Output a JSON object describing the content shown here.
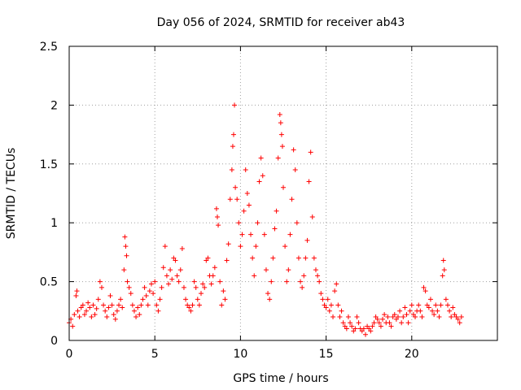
{
  "chart_data": {
    "type": "scatter",
    "title": "Day 056 of 2024, SRMTID for receiver ab43",
    "xlabel": "GPS time / hours",
    "ylabel": "SRMTID / TECUs",
    "xlim": [
      0,
      25
    ],
    "ylim": [
      0,
      2.5
    ],
    "xticks": [
      0,
      5,
      10,
      15,
      20
    ],
    "xtick_labels": [
      "0",
      "5",
      "10",
      "15",
      "20"
    ],
    "yticks": [
      0,
      0.5,
      1,
      1.5,
      2,
      2.5
    ],
    "ytick_labels": [
      "0",
      "0.5",
      "1",
      "1.5",
      "2",
      "2.5"
    ],
    "grid": true,
    "marker": "+",
    "color": "#ff0000",
    "series": [
      {
        "name": "SRMTID",
        "points": [
          [
            0.0,
            0.15
          ],
          [
            0.1,
            0.18
          ],
          [
            0.2,
            0.12
          ],
          [
            0.3,
            0.22
          ],
          [
            0.4,
            0.38
          ],
          [
            0.45,
            0.42
          ],
          [
            0.5,
            0.25
          ],
          [
            0.6,
            0.2
          ],
          [
            0.7,
            0.28
          ],
          [
            0.8,
            0.3
          ],
          [
            0.9,
            0.22
          ],
          [
            1.0,
            0.25
          ],
          [
            1.1,
            0.32
          ],
          [
            1.2,
            0.28
          ],
          [
            1.3,
            0.2
          ],
          [
            1.4,
            0.3
          ],
          [
            1.5,
            0.22
          ],
          [
            1.6,
            0.27
          ],
          [
            1.7,
            0.35
          ],
          [
            1.8,
            0.5
          ],
          [
            1.9,
            0.45
          ],
          [
            2.0,
            0.3
          ],
          [
            2.1,
            0.25
          ],
          [
            2.2,
            0.2
          ],
          [
            2.3,
            0.28
          ],
          [
            2.4,
            0.38
          ],
          [
            2.5,
            0.3
          ],
          [
            2.6,
            0.22
          ],
          [
            2.7,
            0.18
          ],
          [
            2.8,
            0.25
          ],
          [
            2.9,
            0.3
          ],
          [
            3.0,
            0.35
          ],
          [
            3.1,
            0.28
          ],
          [
            3.2,
            0.6
          ],
          [
            3.25,
            0.88
          ],
          [
            3.3,
            0.8
          ],
          [
            3.35,
            0.72
          ],
          [
            3.4,
            0.5
          ],
          [
            3.5,
            0.45
          ],
          [
            3.6,
            0.4
          ],
          [
            3.7,
            0.3
          ],
          [
            3.8,
            0.25
          ],
          [
            3.9,
            0.2
          ],
          [
            4.0,
            0.28
          ],
          [
            4.1,
            0.22
          ],
          [
            4.2,
            0.3
          ],
          [
            4.3,
            0.35
          ],
          [
            4.4,
            0.45
          ],
          [
            4.5,
            0.38
          ],
          [
            4.6,
            0.3
          ],
          [
            4.7,
            0.42
          ],
          [
            4.8,
            0.48
          ],
          [
            4.9,
            0.4
          ],
          [
            5.0,
            0.5
          ],
          [
            5.1,
            0.3
          ],
          [
            5.2,
            0.25
          ],
          [
            5.3,
            0.35
          ],
          [
            5.4,
            0.45
          ],
          [
            5.5,
            0.62
          ],
          [
            5.6,
            0.8
          ],
          [
            5.7,
            0.55
          ],
          [
            5.8,
            0.48
          ],
          [
            5.9,
            0.6
          ],
          [
            6.0,
            0.52
          ],
          [
            6.1,
            0.7
          ],
          [
            6.2,
            0.68
          ],
          [
            6.3,
            0.55
          ],
          [
            6.4,
            0.5
          ],
          [
            6.5,
            0.6
          ],
          [
            6.6,
            0.78
          ],
          [
            6.7,
            0.45
          ],
          [
            6.8,
            0.35
          ],
          [
            6.9,
            0.3
          ],
          [
            7.0,
            0.28
          ],
          [
            7.1,
            0.25
          ],
          [
            7.2,
            0.3
          ],
          [
            7.3,
            0.5
          ],
          [
            7.4,
            0.45
          ],
          [
            7.5,
            0.35
          ],
          [
            7.6,
            0.3
          ],
          [
            7.7,
            0.4
          ],
          [
            7.8,
            0.48
          ],
          [
            7.9,
            0.45
          ],
          [
            8.0,
            0.68
          ],
          [
            8.1,
            0.7
          ],
          [
            8.2,
            0.55
          ],
          [
            8.3,
            0.48
          ],
          [
            8.4,
            0.55
          ],
          [
            8.5,
            0.62
          ],
          [
            8.6,
            1.12
          ],
          [
            8.65,
            1.05
          ],
          [
            8.7,
            0.98
          ],
          [
            8.8,
            0.5
          ],
          [
            8.9,
            0.3
          ],
          [
            9.0,
            0.42
          ],
          [
            9.1,
            0.35
          ],
          [
            9.2,
            0.68
          ],
          [
            9.3,
            0.82
          ],
          [
            9.4,
            1.2
          ],
          [
            9.5,
            1.45
          ],
          [
            9.55,
            1.65
          ],
          [
            9.6,
            1.75
          ],
          [
            9.65,
            2.0
          ],
          [
            9.7,
            1.3
          ],
          [
            9.8,
            1.2
          ],
          [
            9.9,
            1.0
          ],
          [
            10.0,
            0.8
          ],
          [
            10.1,
            0.9
          ],
          [
            10.2,
            1.1
          ],
          [
            10.3,
            1.45
          ],
          [
            10.4,
            1.25
          ],
          [
            10.5,
            1.15
          ],
          [
            10.6,
            0.9
          ],
          [
            10.7,
            0.7
          ],
          [
            10.8,
            0.55
          ],
          [
            10.9,
            0.8
          ],
          [
            11.0,
            1.0
          ],
          [
            11.1,
            1.35
          ],
          [
            11.2,
            1.55
          ],
          [
            11.3,
            1.4
          ],
          [
            11.4,
            0.9
          ],
          [
            11.5,
            0.6
          ],
          [
            11.6,
            0.4
          ],
          [
            11.7,
            0.35
          ],
          [
            11.8,
            0.5
          ],
          [
            11.9,
            0.7
          ],
          [
            12.0,
            0.95
          ],
          [
            12.1,
            1.1
          ],
          [
            12.2,
            1.55
          ],
          [
            12.3,
            1.92
          ],
          [
            12.35,
            1.85
          ],
          [
            12.4,
            1.75
          ],
          [
            12.45,
            1.65
          ],
          [
            12.5,
            1.3
          ],
          [
            12.6,
            0.8
          ],
          [
            12.7,
            0.5
          ],
          [
            12.8,
            0.6
          ],
          [
            12.9,
            0.9
          ],
          [
            13.0,
            1.2
          ],
          [
            13.1,
            1.62
          ],
          [
            13.2,
            1.45
          ],
          [
            13.3,
            1.0
          ],
          [
            13.4,
            0.7
          ],
          [
            13.5,
            0.5
          ],
          [
            13.6,
            0.45
          ],
          [
            13.7,
            0.55
          ],
          [
            13.8,
            0.7
          ],
          [
            13.9,
            0.85
          ],
          [
            14.0,
            1.35
          ],
          [
            14.1,
            1.6
          ],
          [
            14.2,
            1.05
          ],
          [
            14.3,
            0.7
          ],
          [
            14.4,
            0.6
          ],
          [
            14.5,
            0.55
          ],
          [
            14.6,
            0.5
          ],
          [
            14.7,
            0.4
          ],
          [
            14.8,
            0.35
          ],
          [
            14.9,
            0.3
          ],
          [
            15.0,
            0.28
          ],
          [
            15.1,
            0.35
          ],
          [
            15.2,
            0.25
          ],
          [
            15.3,
            0.3
          ],
          [
            15.4,
            0.2
          ],
          [
            15.5,
            0.42
          ],
          [
            15.6,
            0.48
          ],
          [
            15.7,
            0.3
          ],
          [
            15.8,
            0.2
          ],
          [
            15.9,
            0.25
          ],
          [
            16.0,
            0.15
          ],
          [
            16.1,
            0.12
          ],
          [
            16.2,
            0.1
          ],
          [
            16.3,
            0.2
          ],
          [
            16.4,
            0.15
          ],
          [
            16.5,
            0.12
          ],
          [
            16.6,
            0.08
          ],
          [
            16.7,
            0.1
          ],
          [
            16.8,
            0.2
          ],
          [
            16.9,
            0.15
          ],
          [
            17.0,
            0.1
          ],
          [
            17.1,
            0.08
          ],
          [
            17.2,
            0.1
          ],
          [
            17.3,
            0.05
          ],
          [
            17.4,
            0.12
          ],
          [
            17.5,
            0.1
          ],
          [
            17.6,
            0.08
          ],
          [
            17.7,
            0.12
          ],
          [
            17.8,
            0.15
          ],
          [
            17.9,
            0.2
          ],
          [
            18.0,
            0.18
          ],
          [
            18.1,
            0.15
          ],
          [
            18.2,
            0.12
          ],
          [
            18.3,
            0.18
          ],
          [
            18.4,
            0.22
          ],
          [
            18.5,
            0.15
          ],
          [
            18.6,
            0.2
          ],
          [
            18.7,
            0.15
          ],
          [
            18.8,
            0.12
          ],
          [
            18.9,
            0.2
          ],
          [
            19.0,
            0.22
          ],
          [
            19.1,
            0.18
          ],
          [
            19.2,
            0.2
          ],
          [
            19.3,
            0.25
          ],
          [
            19.4,
            0.15
          ],
          [
            19.5,
            0.2
          ],
          [
            19.6,
            0.28
          ],
          [
            19.7,
            0.22
          ],
          [
            19.8,
            0.15
          ],
          [
            19.9,
            0.25
          ],
          [
            20.0,
            0.3
          ],
          [
            20.1,
            0.22
          ],
          [
            20.2,
            0.2
          ],
          [
            20.3,
            0.25
          ],
          [
            20.4,
            0.3
          ],
          [
            20.5,
            0.25
          ],
          [
            20.6,
            0.2
          ],
          [
            20.7,
            0.45
          ],
          [
            20.8,
            0.42
          ],
          [
            20.9,
            0.3
          ],
          [
            21.0,
            0.28
          ],
          [
            21.1,
            0.35
          ],
          [
            21.2,
            0.25
          ],
          [
            21.3,
            0.22
          ],
          [
            21.4,
            0.3
          ],
          [
            21.5,
            0.25
          ],
          [
            21.6,
            0.2
          ],
          [
            21.7,
            0.3
          ],
          [
            21.8,
            0.55
          ],
          [
            21.85,
            0.68
          ],
          [
            21.9,
            0.6
          ],
          [
            22.0,
            0.35
          ],
          [
            22.1,
            0.3
          ],
          [
            22.2,
            0.25
          ],
          [
            22.3,
            0.2
          ],
          [
            22.4,
            0.28
          ],
          [
            22.5,
            0.22
          ],
          [
            22.6,
            0.2
          ],
          [
            22.7,
            0.18
          ],
          [
            22.8,
            0.15
          ],
          [
            22.9,
            0.2
          ]
        ]
      }
    ]
  }
}
